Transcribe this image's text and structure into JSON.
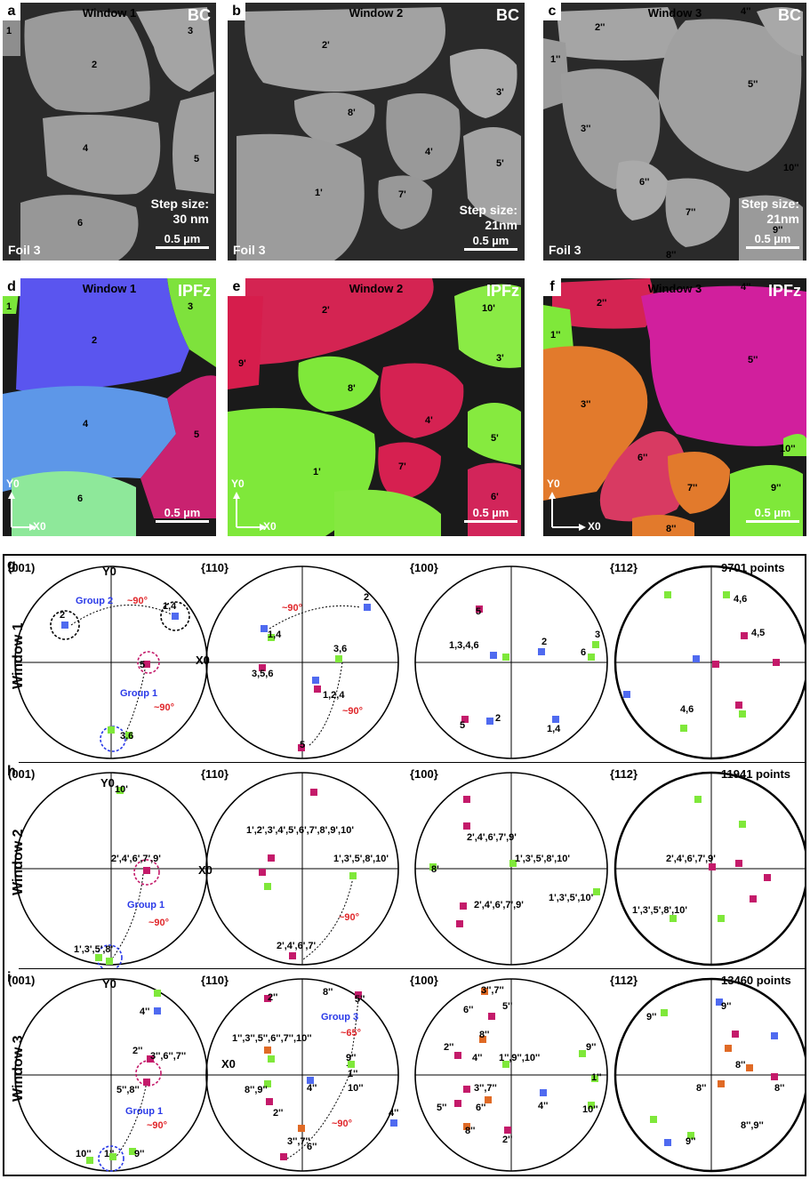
{
  "panels_top": [
    {
      "plate": "a",
      "window": "Window 1",
      "mode": "BC",
      "step_label": "Step size:",
      "step": "30 nm",
      "scale": "0.5 µm",
      "foil": "Foil 3",
      "grains": [
        "1",
        "2",
        "3",
        "4",
        "5",
        "6"
      ]
    },
    {
      "plate": "b",
      "window": "Window 2",
      "mode": "BC",
      "step_label": "Step size:",
      "step": "21nm",
      "scale": "0.5 µm",
      "foil": "Foil 3",
      "grains": [
        "2'",
        "3'",
        "8'",
        "4'",
        "5'",
        "1'",
        "7'"
      ]
    },
    {
      "plate": "c",
      "window": "Window 3",
      "mode": "BC",
      "step_label": "Step size:",
      "step": "21nm",
      "scale": "0.5 µm",
      "foil": "Foil 3",
      "grains": [
        "2''",
        "1''",
        "4''",
        "5''",
        "3''",
        "6''",
        "7''",
        "9''",
        "10''",
        "8''"
      ]
    }
  ],
  "panels_mid": [
    {
      "plate": "d",
      "window": "Window 1",
      "mode": "IPFz",
      "scale": "0.5 µm",
      "y_axis": "Y0",
      "x_axis": "X0",
      "grains": [
        "1",
        "2",
        "3",
        "4",
        "5",
        "6"
      ]
    },
    {
      "plate": "e",
      "window": "Window 2",
      "mode": "IPFz",
      "scale": "0.5 µm",
      "y_axis": "Y0",
      "x_axis": "X0",
      "grains": [
        "2'",
        "10'",
        "9'",
        "3'",
        "8'",
        "4'",
        "5'",
        "1'",
        "7'",
        "6'"
      ]
    },
    {
      "plate": "f",
      "window": "Window 3",
      "mode": "IPFz",
      "scale": "0.5 µm",
      "y_axis": "Y0",
      "x_axis": "X0",
      "grains": [
        "2''",
        "4''",
        "1''",
        "5''",
        "3''",
        "10''",
        "6''",
        "7''",
        "9''",
        "8''"
      ]
    }
  ],
  "pole_rows": [
    {
      "plate": "g",
      "side_label": "Window 1",
      "points": "9701 points",
      "figures": [
        "(001)",
        "{110}",
        "{100}",
        "{112}"
      ],
      "annotations": {
        "f1": [
          "Y0",
          "X0",
          "Group 2",
          "~90°",
          "2",
          "1,4",
          "5",
          "Group 1",
          "~90°",
          "3,6"
        ],
        "f2": [
          "~90°",
          "2",
          "1,4",
          "3,6",
          "3,5,6",
          "1,2,4",
          "~90°",
          "5"
        ],
        "f3": [
          "5",
          "1,3,4,6",
          "2",
          "6",
          "3",
          "5",
          "2",
          "1,4"
        ],
        "f4": [
          "4,6",
          "4,5",
          "4,6"
        ]
      }
    },
    {
      "plate": "h",
      "side_label": "Window 2",
      "points": "11941 points",
      "figures": [
        "(001)",
        "{110}",
        "{100}",
        "{112}"
      ],
      "annotations": {
        "f1": [
          "Y0",
          "10'",
          "X0",
          "2',4',6',7',9'",
          "Group 1",
          "~90°",
          "1',3',5',8'"
        ],
        "f2": [
          "1',2',3',4',5',6',7',8',9',10'",
          "1',3',5',8',10'",
          "~90°",
          "2',4',6',7'"
        ],
        "f3": [
          "2',4',6',7',9'",
          "8'",
          "1',3',5',8',10'",
          "1',3',5',10'",
          "2',4',6',7',9'"
        ],
        "f4": [
          "2',4',6',7',9'",
          "1',3',5',8',10'"
        ]
      }
    },
    {
      "plate": "i",
      "side_label": "Window 3",
      "points": "13460 points",
      "figures": [
        "(001)",
        "{110}",
        "{100}",
        "{112}"
      ],
      "annotations": {
        "f1": [
          "Y0",
          "4''",
          "2''",
          "3'',6'',7''",
          "5'',8''",
          "Group 1",
          "~90°",
          "10''",
          "1''",
          "9''"
        ],
        "f2": [
          "2''",
          "8''",
          "5''",
          "Group 3",
          "~65°",
          "1'',3'',5'',6'',7'',10''",
          "X0",
          "9''",
          "1''",
          "10''",
          "8'',9''",
          "4''",
          "2''",
          "~90°",
          "3'',7''",
          "6''",
          "4''"
        ],
        "f3": [
          "3'',7''",
          "6''",
          "5''",
          "8''",
          "2''",
          "4''",
          "1'',9'',10''",
          "9''",
          "1''",
          "3'',7''",
          "5''",
          "6''",
          "4''",
          "10''",
          "8''",
          "2''"
        ],
        "f4": [
          "9''",
          "9''",
          "8''",
          "8''",
          "8''",
          "8'',9''",
          "9''"
        ]
      }
    }
  ],
  "colors": {
    "green": "#7fe83a",
    "magenta": "#c41a6a",
    "crimson": "#d2204f",
    "blue": "#4f6af0",
    "orange": "#e06a25",
    "red_text": "#e0262a",
    "group_blue": "#2a3ae8"
  }
}
